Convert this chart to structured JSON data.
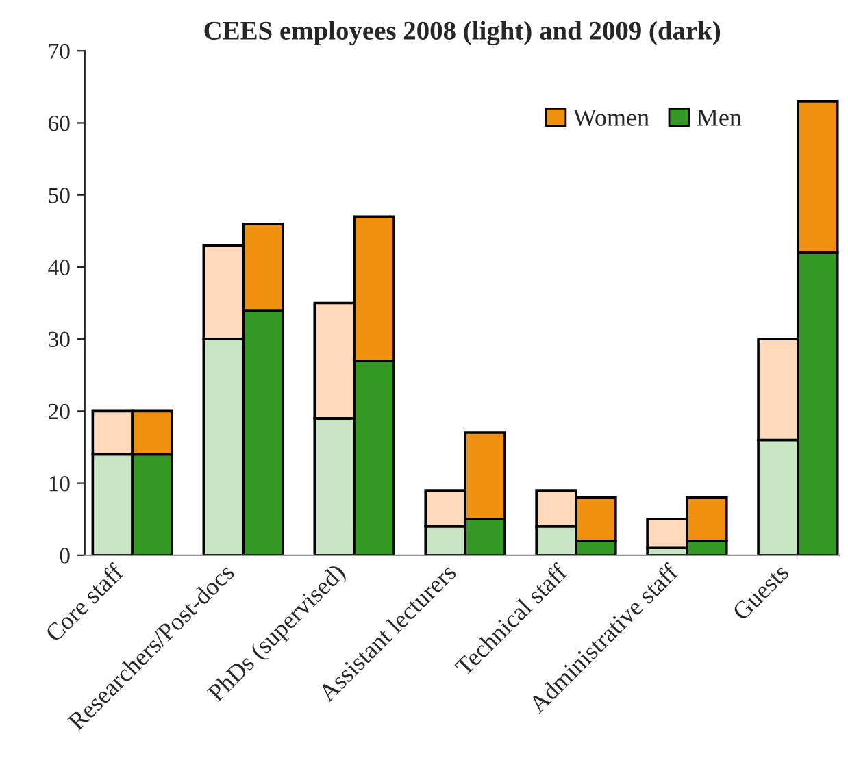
{
  "chart_data": {
    "type": "bar",
    "title": "CEES employees 2008 (light) and 2009 (dark)",
    "categories": [
      "Core staff",
      null,
      "Researchers/Post-docs",
      null,
      "PhDs (supervised)",
      null,
      "Assistant lecturers",
      null,
      "Technical staff",
      null,
      "Administrative staff",
      null,
      "Guests",
      null
    ],
    "stacked": true,
    "series": [
      {
        "name": "Men",
        "color": "#339922",
        "colors": [
          "#c8e6c4",
          "#339922",
          "#c8e6c4",
          "#339922",
          "#c8e6c4",
          "#339922",
          "#c8e6c4",
          "#339922",
          "#c8e6c4",
          "#339922",
          "#c8e6c4",
          "#339922",
          "#c8e6c4",
          "#339922"
        ],
        "values": [
          14,
          14,
          30,
          34,
          19,
          27,
          4,
          5,
          4,
          2,
          1,
          2,
          16,
          42
        ]
      },
      {
        "name": "Women",
        "color": "#f09010",
        "colors": [
          "#ffd9bc",
          "#f09010",
          "#ffd9bc",
          "#f09010",
          "#ffd9bc",
          "#f09010",
          "#ffd9bc",
          "#f09010",
          "#ffd9bc",
          "#f09010",
          "#ffd9bc",
          "#f09010",
          "#ffd9bc",
          "#f09010"
        ],
        "values": [
          6,
          6,
          13,
          12,
          16,
          20,
          5,
          12,
          5,
          6,
          4,
          6,
          14,
          21
        ]
      }
    ],
    "ylim": [
      0,
      70
    ],
    "yticks": [
      0,
      10,
      20,
      30,
      40,
      50,
      60,
      70
    ],
    "legend": "top right",
    "grid": false
  }
}
